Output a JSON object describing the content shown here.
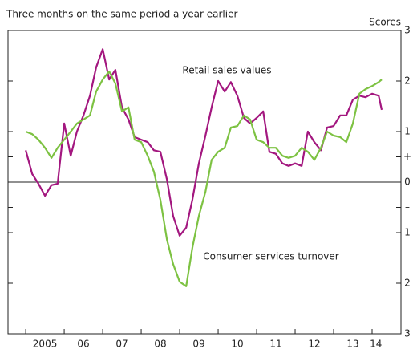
{
  "chart_data": {
    "type": "line",
    "title": "Three months on the same period a year earlier",
    "y_axis_label": "Scores",
    "annotations": [
      "Retail sales values",
      "Consumer services turnover"
    ],
    "x": [
      2005,
      2005.17,
      2005.33,
      2005.5,
      2005.67,
      2005.83,
      2006,
      2006.17,
      2006.33,
      2006.5,
      2006.67,
      2006.83,
      2007,
      2007.17,
      2007.33,
      2007.5,
      2007.67,
      2007.83,
      2008,
      2008.17,
      2008.33,
      2008.5,
      2008.67,
      2008.83,
      2009,
      2009.17,
      2009.33,
      2009.5,
      2009.67,
      2009.83,
      2010,
      2010.17,
      2010.33,
      2010.5,
      2010.67,
      2010.83,
      2011,
      2011.17,
      2011.33,
      2011.5,
      2011.67,
      2011.83,
      2012,
      2012.17,
      2012.33,
      2012.5,
      2012.67,
      2012.83,
      2013,
      2013.17,
      2013.33,
      2013.5,
      2013.67,
      2013.83,
      2014,
      2014.17,
      2014.25
    ],
    "series": [
      {
        "name": "Retail sales values",
        "color": "#a3177f",
        "values": [
          0.63,
          0.16,
          -0.03,
          -0.27,
          -0.06,
          -0.03,
          1.16,
          0.52,
          1.0,
          1.32,
          1.71,
          2.27,
          2.63,
          2.03,
          2.22,
          1.48,
          1.24,
          0.89,
          0.84,
          0.79,
          0.63,
          0.6,
          0.05,
          -0.67,
          -1.06,
          -0.9,
          -0.35,
          0.37,
          0.92,
          1.48,
          2.0,
          1.79,
          1.98,
          1.71,
          1.27,
          1.16,
          1.27,
          1.4,
          0.6,
          0.56,
          0.37,
          0.32,
          0.37,
          0.32,
          1.0,
          0.79,
          0.63,
          1.08,
          1.11,
          1.32,
          1.32,
          1.63,
          1.71,
          1.68,
          1.75,
          1.71,
          1.43
        ]
      },
      {
        "name": "Consumer services turnover",
        "color": "#7dc242",
        "values": [
          1.0,
          0.95,
          0.84,
          0.68,
          0.48,
          0.68,
          0.84,
          1.0,
          1.16,
          1.24,
          1.32,
          1.79,
          2.03,
          2.19,
          1.95,
          1.4,
          1.48,
          0.84,
          0.79,
          0.52,
          0.21,
          -0.35,
          -1.14,
          -1.62,
          -1.97,
          -2.06,
          -1.3,
          -0.67,
          -0.19,
          0.44,
          0.6,
          0.68,
          1.08,
          1.11,
          1.32,
          1.24,
          0.84,
          0.79,
          0.68,
          0.68,
          0.52,
          0.48,
          0.52,
          0.68,
          0.6,
          0.44,
          0.68,
          1.0,
          0.92,
          0.89,
          0.79,
          1.16,
          1.75,
          1.84,
          1.9,
          1.98,
          2.03
        ]
      }
    ],
    "xlim": [
      2004.54,
      2014.75
    ],
    "xticks": [
      2005,
      2006,
      2007,
      2008,
      2009,
      2010,
      2011,
      2012,
      2013,
      2014
    ],
    "x_labels": [
      {
        "value": 2005.5,
        "label": "2005"
      },
      {
        "value": 2006.5,
        "label": "06"
      },
      {
        "value": 2007.5,
        "label": "07"
      },
      {
        "value": 2008.5,
        "label": "08"
      },
      {
        "value": 2009.5,
        "label": "09"
      },
      {
        "value": 2010.5,
        "label": "10"
      },
      {
        "value": 2011.5,
        "label": "11"
      },
      {
        "value": 2012.5,
        "label": "12"
      },
      {
        "value": 2013.5,
        "label": "13"
      },
      {
        "value": 2014.1,
        "label": "14"
      }
    ],
    "ylim": [
      -3,
      3
    ],
    "yticks": [
      3,
      2,
      1,
      {
        "value": 0.5,
        "label": "+"
      },
      0,
      {
        "value": -0.5,
        "label": "–"
      },
      {
        "value": -1,
        "label": "1"
      },
      {
        "value": -2,
        "label": "2"
      },
      {
        "value": -3,
        "label": "3"
      }
    ]
  }
}
